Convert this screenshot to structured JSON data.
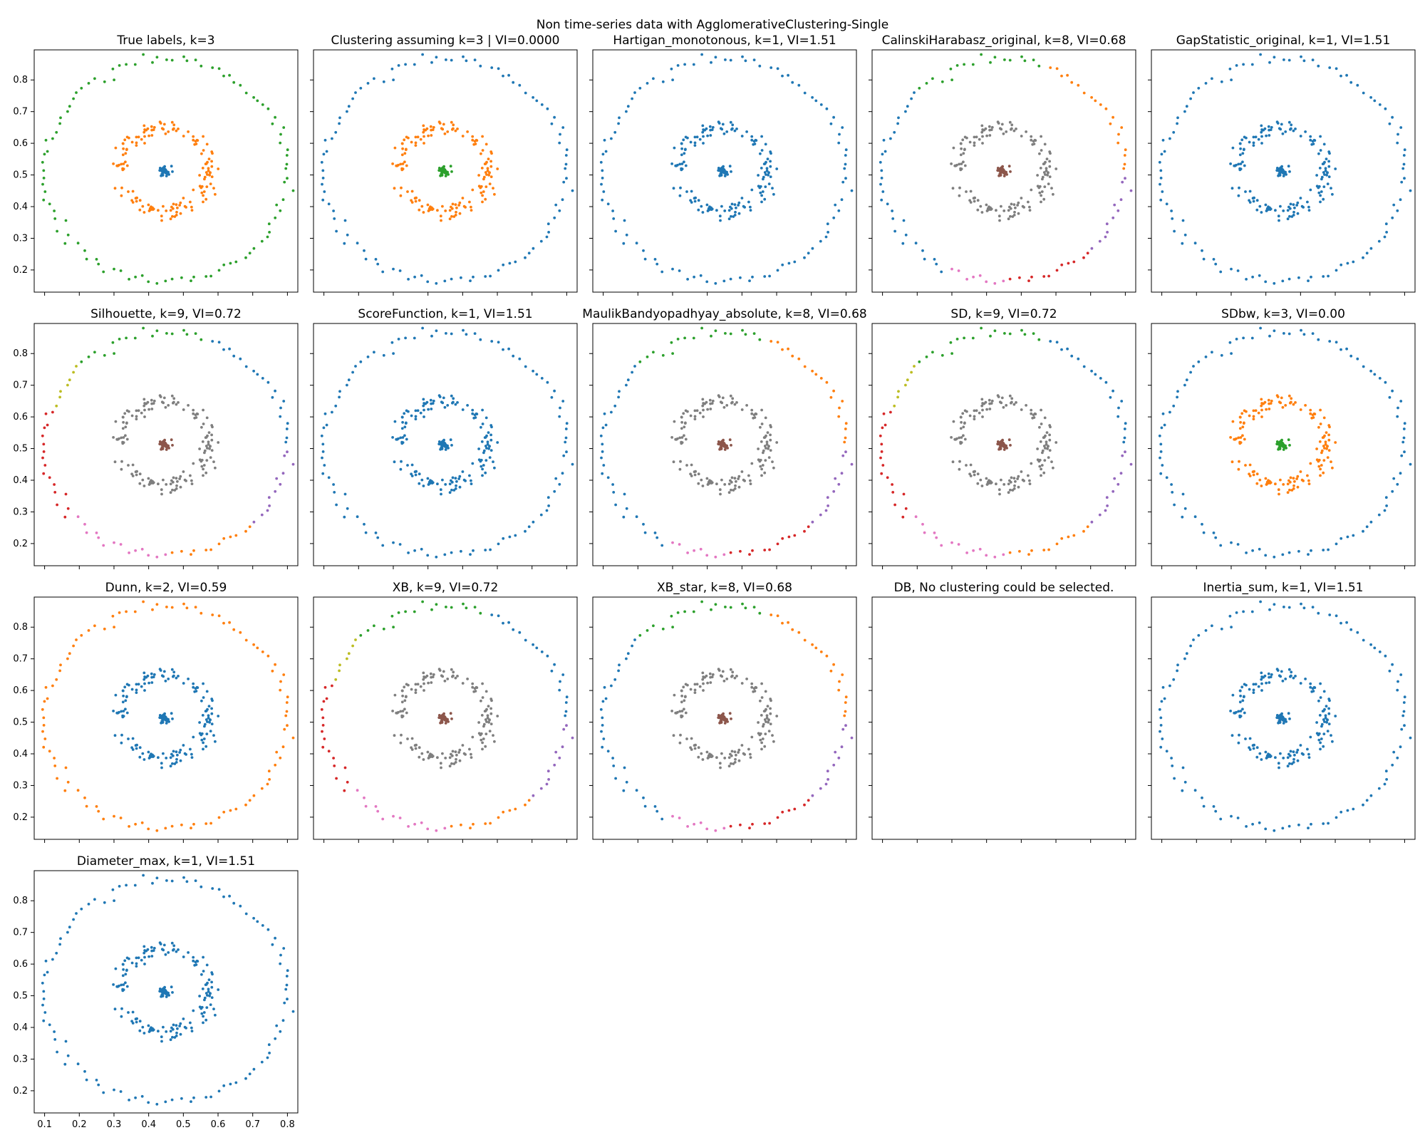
{
  "figure": {
    "title": "Non time-series data with AgglomerativeClustering-Single"
  },
  "axes": {
    "xlim": [
      0.07,
      0.83
    ],
    "ylim": [
      0.13,
      0.895
    ],
    "x_ticks": [
      "0.1",
      "0.2",
      "0.3",
      "0.4",
      "0.5",
      "0.6",
      "0.7",
      "0.8"
    ],
    "y_ticks": [
      "0.2",
      "0.3",
      "0.4",
      "0.5",
      "0.6",
      "0.7",
      "0.8"
    ]
  },
  "colors": {
    "tab_blue": "#1f77b4",
    "tab_orange": "#ff7f0e",
    "tab_green": "#2ca02c",
    "tab_red": "#d62728",
    "tab_purple": "#9467bd",
    "tab_brown": "#8c564b",
    "tab_pink": "#e377c2",
    "tab_gray": "#7f7f7f",
    "tab_olive": "#bcbd22"
  },
  "chart_data": [
    {
      "type": "scatter",
      "title": "True labels, k=3",
      "xlim": [
        0.07,
        0.83
      ],
      "ylim": [
        0.13,
        0.895
      ],
      "clusters": {
        "center": "tab_blue",
        "inner": "tab_orange",
        "outer": "tab_green"
      }
    },
    {
      "type": "scatter",
      "title": "Clustering assuming k=3 | VI=0.0000",
      "xlim": [
        0.07,
        0.83
      ],
      "ylim": [
        0.13,
        0.895
      ],
      "clusters": {
        "center": "tab_green",
        "inner": "tab_orange",
        "outer": "tab_blue"
      }
    },
    {
      "type": "scatter",
      "title": "Hartigan_monotonous, k=1, VI=1.51",
      "xlim": [
        0.07,
        0.83
      ],
      "ylim": [
        0.13,
        0.895
      ],
      "clusters": {
        "center": "tab_blue",
        "inner": "tab_blue",
        "outer": "tab_blue"
      }
    },
    {
      "type": "scatter",
      "title": "CalinskiHarabasz_original, k=8, VI=0.68",
      "xlim": [
        0.07,
        0.83
      ],
      "ylim": [
        0.13,
        0.895
      ],
      "clusters": {
        "center": "tab_brown",
        "inner": "tab_gray",
        "outer": "tab_orange",
        "segments": [
          {
            "from": 20,
            "to": 38,
            "color": "tab_green"
          },
          {
            "from": 38,
            "to": 68,
            "color": "tab_blue"
          },
          {
            "from": 68,
            "to": 76,
            "color": "tab_pink"
          },
          {
            "from": 76,
            "to": 88,
            "color": "tab_red"
          },
          {
            "from": 88,
            "to": 100,
            "color": "tab_purple"
          }
        ]
      }
    },
    {
      "type": "scatter",
      "title": "GapStatistic_original, k=1, VI=1.51",
      "xlim": [
        0.07,
        0.83
      ],
      "ylim": [
        0.13,
        0.895
      ],
      "clusters": {
        "center": "tab_blue",
        "inner": "tab_blue",
        "outer": "tab_blue"
      }
    },
    {
      "type": "scatter",
      "title": "Silhouette, k=9, VI=0.72",
      "xlim": [
        0.07,
        0.83
      ],
      "ylim": [
        0.13,
        0.895
      ],
      "clusters": {
        "center": "tab_brown",
        "inner": "tab_gray",
        "outer": "tab_blue",
        "segments": [
          {
            "from": 20,
            "to": 38,
            "color": "tab_green"
          },
          {
            "from": 38,
            "to": 45,
            "color": "tab_olive"
          },
          {
            "from": 45,
            "to": 62,
            "color": "tab_red"
          },
          {
            "from": 62,
            "to": 76,
            "color": "tab_pink"
          },
          {
            "from": 76,
            "to": 88,
            "color": "tab_orange"
          },
          {
            "from": 88,
            "to": 100,
            "color": "tab_purple"
          }
        ]
      }
    },
    {
      "type": "scatter",
      "title": "ScoreFunction, k=1, VI=1.51",
      "xlim": [
        0.07,
        0.83
      ],
      "ylim": [
        0.13,
        0.895
      ],
      "clusters": {
        "center": "tab_blue",
        "inner": "tab_blue",
        "outer": "tab_blue"
      }
    },
    {
      "type": "scatter",
      "title": "MaulikBandyopadhyay_absolute, k=8, VI=0.68",
      "xlim": [
        0.07,
        0.83
      ],
      "ylim": [
        0.13,
        0.895
      ],
      "clusters": {
        "center": "tab_brown",
        "inner": "tab_gray",
        "outer": "tab_orange",
        "segments": [
          {
            "from": 20,
            "to": 38,
            "color": "tab_green"
          },
          {
            "from": 38,
            "to": 68,
            "color": "tab_blue"
          },
          {
            "from": 68,
            "to": 76,
            "color": "tab_pink"
          },
          {
            "from": 76,
            "to": 88,
            "color": "tab_red"
          },
          {
            "from": 88,
            "to": 100,
            "color": "tab_purple"
          }
        ]
      }
    },
    {
      "type": "scatter",
      "title": "SD, k=9, VI=0.72",
      "xlim": [
        0.07,
        0.83
      ],
      "ylim": [
        0.13,
        0.895
      ],
      "clusters": {
        "center": "tab_brown",
        "inner": "tab_gray",
        "outer": "tab_blue",
        "segments": [
          {
            "from": 20,
            "to": 38,
            "color": "tab_green"
          },
          {
            "from": 38,
            "to": 45,
            "color": "tab_olive"
          },
          {
            "from": 45,
            "to": 62,
            "color": "tab_red"
          },
          {
            "from": 62,
            "to": 76,
            "color": "tab_pink"
          },
          {
            "from": 76,
            "to": 88,
            "color": "tab_orange"
          },
          {
            "from": 88,
            "to": 100,
            "color": "tab_purple"
          }
        ]
      }
    },
    {
      "type": "scatter",
      "title": "SDbw, k=3, VI=0.00",
      "xlim": [
        0.07,
        0.83
      ],
      "ylim": [
        0.13,
        0.895
      ],
      "clusters": {
        "center": "tab_green",
        "inner": "tab_orange",
        "outer": "tab_blue"
      }
    },
    {
      "type": "scatter",
      "title": "Dunn, k=2, VI=0.59",
      "xlim": [
        0.07,
        0.83
      ],
      "ylim": [
        0.13,
        0.895
      ],
      "clusters": {
        "center": "tab_blue",
        "inner": "tab_blue",
        "outer": "tab_orange"
      }
    },
    {
      "type": "scatter",
      "title": "XB, k=9, VI=0.72",
      "xlim": [
        0.07,
        0.83
      ],
      "ylim": [
        0.13,
        0.895
      ],
      "clusters": {
        "center": "tab_brown",
        "inner": "tab_gray",
        "outer": "tab_blue",
        "segments": [
          {
            "from": 20,
            "to": 38,
            "color": "tab_green"
          },
          {
            "from": 38,
            "to": 45,
            "color": "tab_olive"
          },
          {
            "from": 45,
            "to": 62,
            "color": "tab_red"
          },
          {
            "from": 62,
            "to": 76,
            "color": "tab_pink"
          },
          {
            "from": 76,
            "to": 88,
            "color": "tab_orange"
          },
          {
            "from": 88,
            "to": 100,
            "color": "tab_purple"
          }
        ]
      }
    },
    {
      "type": "scatter",
      "title": "XB_star, k=8, VI=0.68",
      "xlim": [
        0.07,
        0.83
      ],
      "ylim": [
        0.13,
        0.895
      ],
      "clusters": {
        "center": "tab_brown",
        "inner": "tab_gray",
        "outer": "tab_orange",
        "segments": [
          {
            "from": 20,
            "to": 38,
            "color": "tab_green"
          },
          {
            "from": 38,
            "to": 68,
            "color": "tab_blue"
          },
          {
            "from": 68,
            "to": 76,
            "color": "tab_pink"
          },
          {
            "from": 76,
            "to": 88,
            "color": "tab_red"
          },
          {
            "from": 88,
            "to": 100,
            "color": "tab_purple"
          }
        ]
      }
    },
    {
      "type": "scatter",
      "title": "DB, No clustering could be selected.",
      "xlim": [
        0.07,
        0.83
      ],
      "ylim": [
        0.13,
        0.895
      ],
      "empty": true
    },
    {
      "type": "scatter",
      "title": "Inertia_sum, k=1, VI=1.51",
      "xlim": [
        0.07,
        0.83
      ],
      "ylim": [
        0.13,
        0.895
      ],
      "clusters": {
        "center": "tab_blue",
        "inner": "tab_blue",
        "outer": "tab_blue"
      }
    },
    {
      "type": "scatter",
      "title": "Diameter_max, k=1, VI=1.51",
      "xlim": [
        0.07,
        0.83
      ],
      "ylim": [
        0.13,
        0.895
      ],
      "clusters": {
        "center": "tab_blue",
        "inner": "tab_blue",
        "outer": "tab_blue"
      }
    }
  ]
}
